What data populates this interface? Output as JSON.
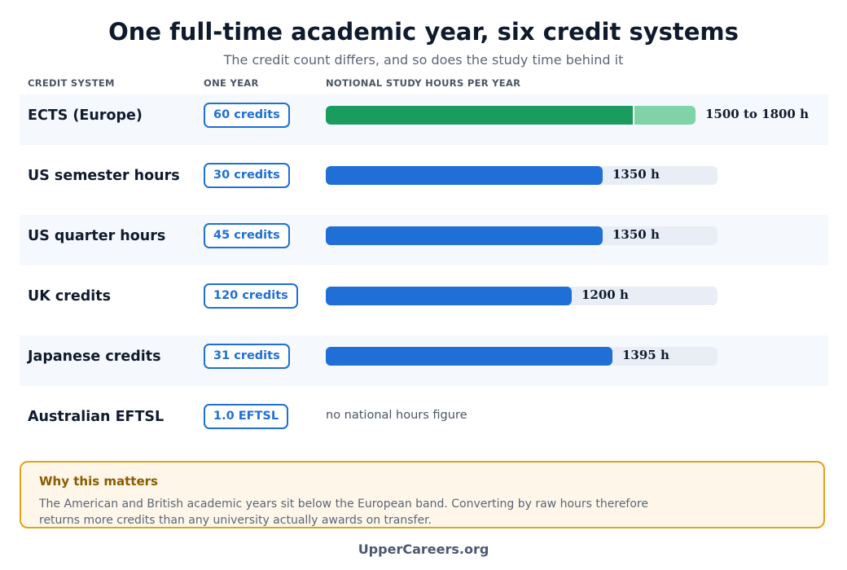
{
  "header": {
    "title": "One full-time academic year, six credit systems",
    "subtitle": "The credit count differs, and so does the study time behind it"
  },
  "columns": {
    "system": "CREDIT SYSTEM",
    "year": "ONE YEAR",
    "hours": "NOTIONAL STUDY HOURS PER YEAR"
  },
  "colors": {
    "bar": "#1f6fd6",
    "ects_low": "#1a9c5f",
    "ects_range": "#7fd3a6",
    "track": "#e9eef6",
    "note_border": "#e0a21c"
  },
  "chart_data": {
    "type": "bar",
    "orientation": "horizontal",
    "xlim": [
      0,
      1900
    ],
    "categories": [
      "ECTS (Europe)",
      "US semester hours",
      "US quarter hours",
      "UK credits",
      "Japanese credits",
      "Australian EFTSL"
    ],
    "credits": [
      "60 credits",
      "30 credits",
      "45 credits",
      "120 credits",
      "31 credits",
      "1.0 EFTSL"
    ],
    "values": [
      1500,
      1350,
      1350,
      1200,
      1395,
      null
    ],
    "range_high": [
      1800,
      null,
      null,
      null,
      null,
      null
    ],
    "value_labels": [
      "1500 to 1800 h",
      "1350 h",
      "1350 h",
      "1200 h",
      "1395 h",
      ""
    ],
    "missing_label": "no national hours figure"
  },
  "note": {
    "title": "Why this matters",
    "text": "The American and British academic years sit below the European band. Converting by raw hours therefore returns more credits than any university actually awards on transfer."
  },
  "footer": "UpperCareers.org"
}
